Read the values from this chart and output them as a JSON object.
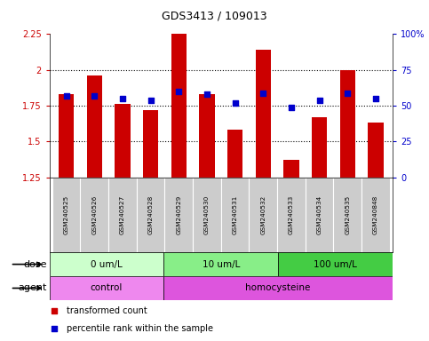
{
  "title": "GDS3413 / 109013",
  "samples": [
    "GSM240525",
    "GSM240526",
    "GSM240527",
    "GSM240528",
    "GSM240529",
    "GSM240530",
    "GSM240531",
    "GSM240532",
    "GSM240533",
    "GSM240534",
    "GSM240535",
    "GSM240848"
  ],
  "transformed_count": [
    1.83,
    1.96,
    1.76,
    1.72,
    2.25,
    1.83,
    1.58,
    2.14,
    1.37,
    1.67,
    2.0,
    1.63
  ],
  "percentile_rank": [
    57,
    57,
    55,
    54,
    60,
    58,
    52,
    59,
    49,
    54,
    59,
    55
  ],
  "ylim_left": [
    1.25,
    2.25
  ],
  "ylim_right": [
    0,
    100
  ],
  "yticks_left": [
    1.25,
    1.5,
    1.75,
    2.0,
    2.25
  ],
  "yticks_right": [
    0,
    25,
    50,
    75,
    100
  ],
  "ytick_labels_left": [
    "1.25",
    "1.5",
    "1.75",
    "2",
    "2.25"
  ],
  "ytick_labels_right": [
    "0",
    "25",
    "50",
    "75",
    "100%"
  ],
  "bar_color": "#cc0000",
  "dot_color": "#0000cc",
  "bar_bottom": 1.25,
  "dose_groups": [
    {
      "label": "0 um/L",
      "start": 0,
      "end": 4,
      "color": "#ccffcc"
    },
    {
      "label": "10 um/L",
      "start": 4,
      "end": 8,
      "color": "#88ee88"
    },
    {
      "label": "100 um/L",
      "start": 8,
      "end": 12,
      "color": "#44cc44"
    }
  ],
  "agent_groups": [
    {
      "label": "control",
      "start": 0,
      "end": 4,
      "color": "#ee88ee"
    },
    {
      "label": "homocysteine",
      "start": 4,
      "end": 12,
      "color": "#dd55dd"
    }
  ],
  "dose_label": "dose",
  "agent_label": "agent",
  "legend_items": [
    {
      "color": "#cc0000",
      "label": "transformed count"
    },
    {
      "color": "#0000cc",
      "label": "percentile rank within the sample"
    }
  ],
  "tick_label_area_color": "#cccccc",
  "grid_yticks": [
    1.5,
    1.75,
    2.0
  ]
}
